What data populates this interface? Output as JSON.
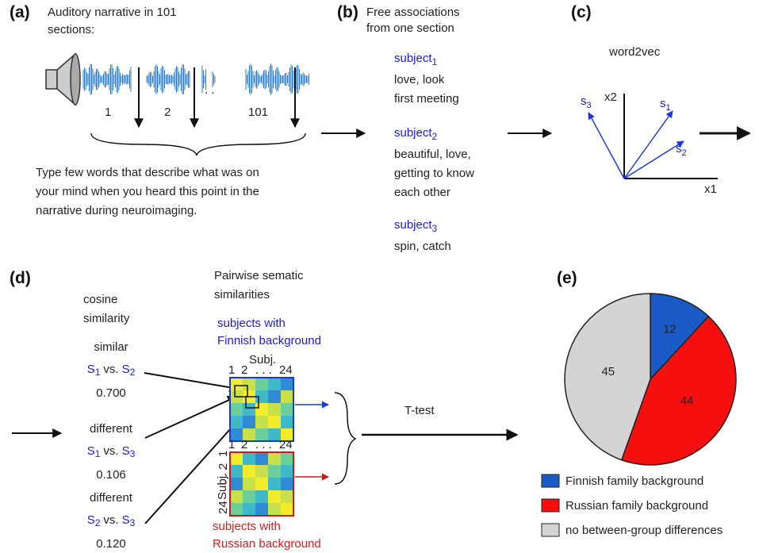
{
  "a": {
    "label": "(a)",
    "title": [
      "Auditory narrative  in 101",
      "sections:"
    ],
    "sections": [
      "1",
      "2",
      "101"
    ],
    "ellipsis": ". .",
    "instruction": [
      "Type few words that describe what was  on",
      "your mind when you heard this point  in the",
      "narrative during neuroimaging."
    ]
  },
  "b": {
    "label": "(b)",
    "title": [
      "Free associations",
      "from one section"
    ],
    "subjects": [
      {
        "name": "subject",
        "index": "1",
        "words": [
          "love, look",
          "first meeting"
        ]
      },
      {
        "name": "subject",
        "index": "2",
        "words": [
          "beautiful, love,",
          "getting to know",
          "each other"
        ]
      },
      {
        "name": "subject",
        "index": "3",
        "words": [
          "spin, catch"
        ]
      }
    ]
  },
  "c": {
    "label": "(c)",
    "title": "word2vec",
    "x_axis": "x1",
    "y_axis": "x2",
    "vectors": [
      {
        "name": "s",
        "index": "1"
      },
      {
        "name": "s",
        "index": "2"
      },
      {
        "name": "s",
        "index": "3"
      }
    ]
  },
  "d": {
    "label": "(d)",
    "title": [
      "cosine",
      "similarity"
    ],
    "comparisons": [
      {
        "kind": "similar",
        "first": "S",
        "first_index": "1",
        "vs": "vs.",
        "second": "S",
        "second_index": "2",
        "value": "0.700"
      },
      {
        "kind": "different",
        "first": "S",
        "first_index": "1",
        "vs": "vs.",
        "second": "S",
        "second_index": "3",
        "value": "0.106"
      },
      {
        "kind": "different",
        "first": "S",
        "first_index": "2",
        "vs": "vs.",
        "second": "S",
        "second_index": "3",
        "value": "0.120"
      }
    ],
    "matrix_title": [
      "Pairwise sematic",
      "similarities"
    ],
    "finnish": [
      "subjects with",
      "Finnish background"
    ],
    "russian": [
      "subjects with",
      "Russian background"
    ],
    "axis_label": "Subj.",
    "axis_ticks": [
      "1",
      "2",
      ". . .",
      "24"
    ],
    "test": "T-test"
  },
  "e": {
    "label": "(e)",
    "chart_data": {
      "type": "pie",
      "values": [
        12,
        44,
        45
      ],
      "series_names": [
        "Finnish family background",
        "Russian family background",
        "no between-group differences"
      ],
      "colors": [
        "#1a5bc8",
        "#f50f0f",
        "#d4d4d4"
      ]
    }
  }
}
